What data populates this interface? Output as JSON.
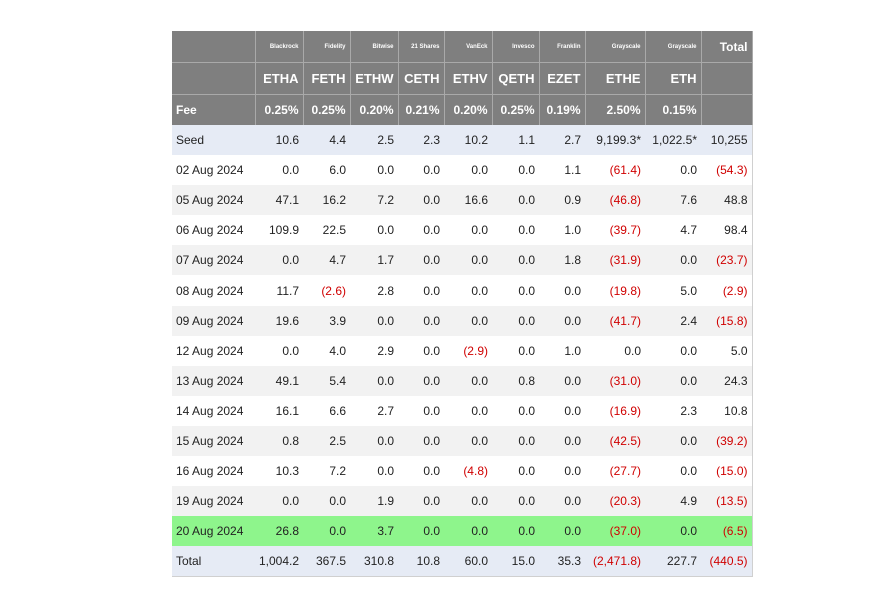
{
  "table": {
    "issuers": [
      "Blackrock",
      "Fidelity",
      "Bitwise",
      "21 Shares",
      "VanEck",
      "Invesco",
      "Franklin",
      "Grayscale",
      "Grayscale"
    ],
    "total_label": "Total",
    "tickers": [
      "ETHA",
      "FETH",
      "ETHW",
      "CETH",
      "ETHV",
      "QETH",
      "EZET",
      "ETHE",
      "ETH"
    ],
    "fee_label": "Fee",
    "fees": [
      "0.25%",
      "0.25%",
      "0.20%",
      "0.21%",
      "0.20%",
      "0.25%",
      "0.19%",
      "2.50%",
      "0.15%"
    ],
    "rows": [
      {
        "label": "Seed",
        "values": [
          "10.6",
          "4.4",
          "2.5",
          "2.3",
          "10.2",
          "1.1",
          "2.7",
          "9,199.3*",
          "1,022.5*",
          "10,255"
        ]
      },
      {
        "label": "02 Aug 2024",
        "values": [
          "0.0",
          "6.0",
          "0.0",
          "0.0",
          "0.0",
          "0.0",
          "1.1",
          "(61.4)",
          "0.0",
          "(54.3)"
        ]
      },
      {
        "label": "05 Aug 2024",
        "values": [
          "47.1",
          "16.2",
          "7.2",
          "0.0",
          "16.6",
          "0.0",
          "0.9",
          "(46.8)",
          "7.6",
          "48.8"
        ]
      },
      {
        "label": "06 Aug 2024",
        "values": [
          "109.9",
          "22.5",
          "0.0",
          "0.0",
          "0.0",
          "0.0",
          "1.0",
          "(39.7)",
          "4.7",
          "98.4"
        ]
      },
      {
        "label": "07 Aug 2024",
        "values": [
          "0.0",
          "4.7",
          "1.7",
          "0.0",
          "0.0",
          "0.0",
          "1.8",
          "(31.9)",
          "0.0",
          "(23.7)"
        ]
      },
      {
        "label": "08 Aug 2024",
        "values": [
          "11.7",
          "(2.6)",
          "2.8",
          "0.0",
          "0.0",
          "0.0",
          "0.0",
          "(19.8)",
          "5.0",
          "(2.9)"
        ]
      },
      {
        "label": "09 Aug 2024",
        "values": [
          "19.6",
          "3.9",
          "0.0",
          "0.0",
          "0.0",
          "0.0",
          "0.0",
          "(41.7)",
          "2.4",
          "(15.8)"
        ]
      },
      {
        "label": "12 Aug 2024",
        "values": [
          "0.0",
          "4.0",
          "2.9",
          "0.0",
          "(2.9)",
          "0.0",
          "1.0",
          "0.0",
          "0.0",
          "5.0"
        ]
      },
      {
        "label": "13 Aug 2024",
        "values": [
          "49.1",
          "5.4",
          "0.0",
          "0.0",
          "0.0",
          "0.8",
          "0.0",
          "(31.0)",
          "0.0",
          "24.3"
        ]
      },
      {
        "label": "14 Aug 2024",
        "values": [
          "16.1",
          "6.6",
          "2.7",
          "0.0",
          "0.0",
          "0.0",
          "0.0",
          "(16.9)",
          "2.3",
          "10.8"
        ]
      },
      {
        "label": "15 Aug 2024",
        "values": [
          "0.8",
          "2.5",
          "0.0",
          "0.0",
          "0.0",
          "0.0",
          "0.0",
          "(42.5)",
          "0.0",
          "(39.2)"
        ]
      },
      {
        "label": "16 Aug 2024",
        "values": [
          "10.3",
          "7.2",
          "0.0",
          "0.0",
          "(4.8)",
          "0.0",
          "0.0",
          "(27.7)",
          "0.0",
          "(15.0)"
        ]
      },
      {
        "label": "19 Aug 2024",
        "values": [
          "0.0",
          "0.0",
          "1.9",
          "0.0",
          "0.0",
          "0.0",
          "0.0",
          "(20.3)",
          "4.9",
          "(13.5)"
        ]
      },
      {
        "label": "20 Aug 2024",
        "values": [
          "26.8",
          "0.0",
          "3.7",
          "0.0",
          "0.0",
          "0.0",
          "0.0",
          "(37.0)",
          "0.0",
          "(6.5)"
        ]
      },
      {
        "label": "Total",
        "values": [
          "1,004.2",
          "367.5",
          "310.8",
          "10.8",
          "60.0",
          "15.0",
          "35.3",
          "(2,471.8)",
          "227.7",
          "(440.5)"
        ]
      }
    ],
    "colors": {
      "header_bg": "#7f7f7f",
      "header_text": "#ffffff",
      "row_alt_bg": "#f2f2f2",
      "seed_total_bg": "#e6ebf5",
      "latest_row_bg": "#8ef58c",
      "negative_text": "#d00000"
    }
  }
}
